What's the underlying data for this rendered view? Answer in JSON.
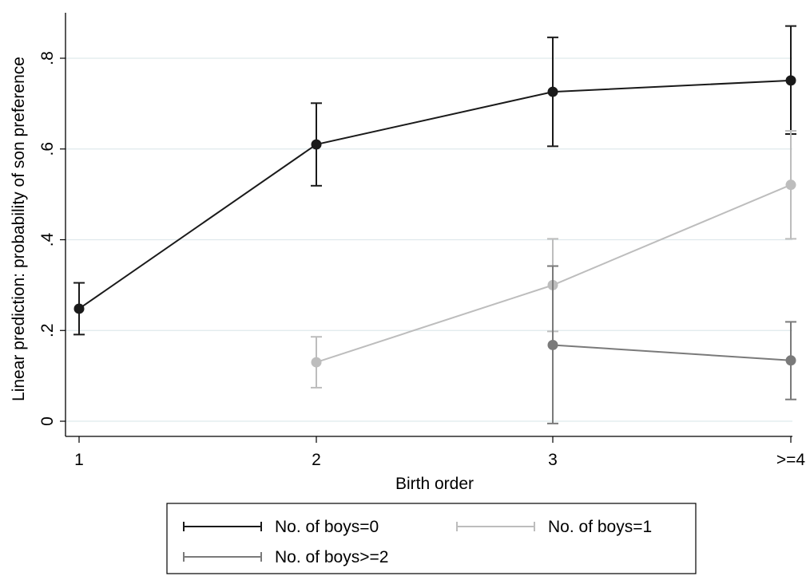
{
  "chart_data": {
    "type": "line",
    "xlabel": "Birth order",
    "ylabel": "Linear prediction: probability of son preference",
    "categories": [
      "1",
      "2",
      "3",
      ">=4"
    ],
    "y_ticks": [
      0,
      0.2,
      0.4,
      0.6,
      0.8
    ],
    "y_tick_labels": [
      "0",
      ".2",
      ".4",
      ".6",
      ".8"
    ],
    "ylim": [
      -0.02,
      0.9
    ],
    "grid": "horizontal",
    "legend_position": "bottom",
    "series": [
      {
        "name": "No. of boys=0",
        "color": "#1a1a1a",
        "values": [
          0.248,
          0.61,
          0.726,
          0.751
        ],
        "lower": [
          0.191,
          0.519,
          0.606,
          0.633
        ],
        "upper": [
          0.305,
          0.701,
          0.846,
          0.871
        ]
      },
      {
        "name": "No. of boys=1",
        "color": "#bdbdbd",
        "values": [
          null,
          0.13,
          0.3,
          0.521
        ],
        "lower": [
          null,
          0.074,
          0.198,
          0.402
        ],
        "upper": [
          null,
          0.186,
          0.402,
          0.64
        ]
      },
      {
        "name": "No. of boys>=2",
        "color": "#7a7a7a",
        "values": [
          null,
          null,
          0.168,
          0.134
        ],
        "lower": [
          null,
          null,
          -0.005,
          0.048
        ],
        "upper": [
          null,
          null,
          0.342,
          0.219
        ]
      }
    ]
  }
}
